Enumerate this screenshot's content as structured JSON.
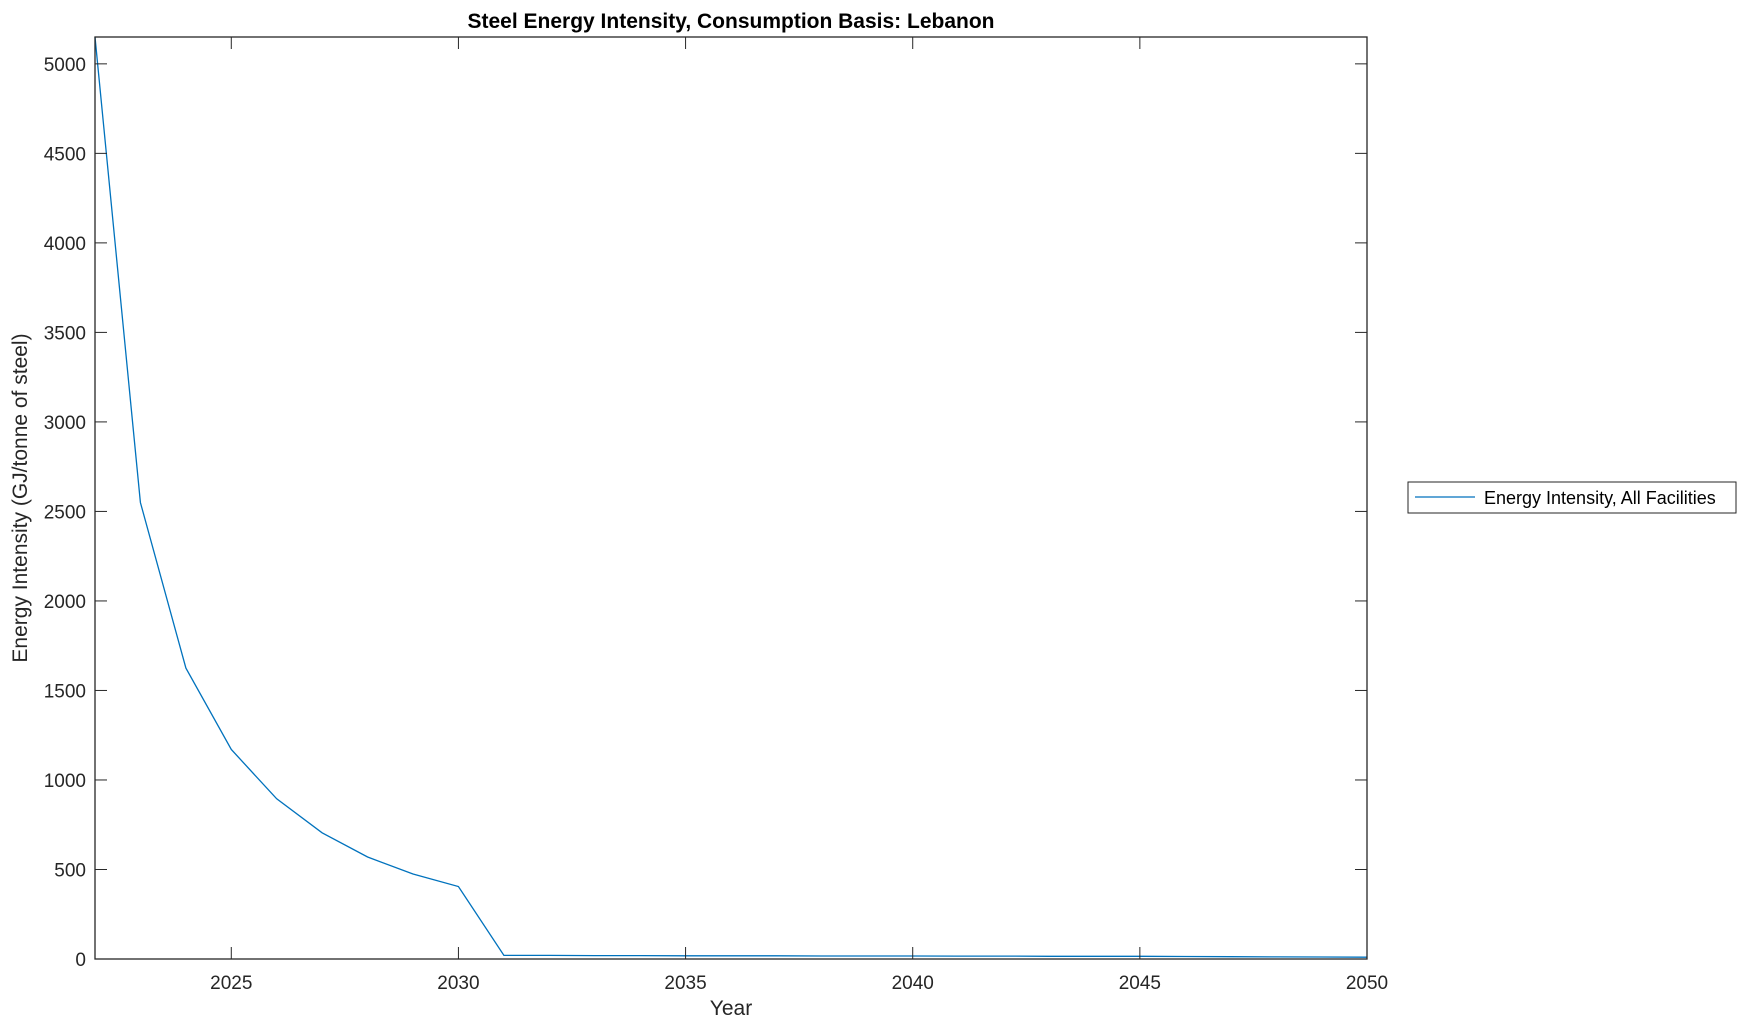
{
  "chart_data": {
    "type": "line",
    "title": "Steel Energy Intensity, Consumption Basis: Lebanon",
    "xlabel": "Year",
    "ylabel": "Energy Intensity (GJ/tonne of steel)",
    "xlim": [
      2022,
      2050
    ],
    "ylim": [
      0,
      5150
    ],
    "xticks": [
      2025,
      2030,
      2035,
      2040,
      2045,
      2050
    ],
    "yticks": [
      0,
      500,
      1000,
      1500,
      2000,
      2500,
      3000,
      3500,
      4000,
      4500,
      5000
    ],
    "grid": false,
    "legend_placement": "outside-right",
    "series": [
      {
        "name": "Energy Intensity, All Facilities",
        "color": "#0072BD",
        "x": [
          2022,
          2023,
          2024,
          2025,
          2026,
          2027,
          2028,
          2029,
          2030,
          2031,
          2032,
          2033,
          2034,
          2035,
          2036,
          2037,
          2038,
          2039,
          2040,
          2041,
          2042,
          2043,
          2044,
          2045,
          2046,
          2047,
          2048,
          2049,
          2050
        ],
        "y": [
          5150,
          2550,
          1625,
          1170,
          895,
          705,
          570,
          475,
          405,
          20,
          20,
          19,
          19,
          18,
          18,
          18,
          17,
          17,
          17,
          16,
          16,
          15,
          15,
          15,
          14,
          13,
          12,
          11,
          10
        ]
      }
    ]
  }
}
